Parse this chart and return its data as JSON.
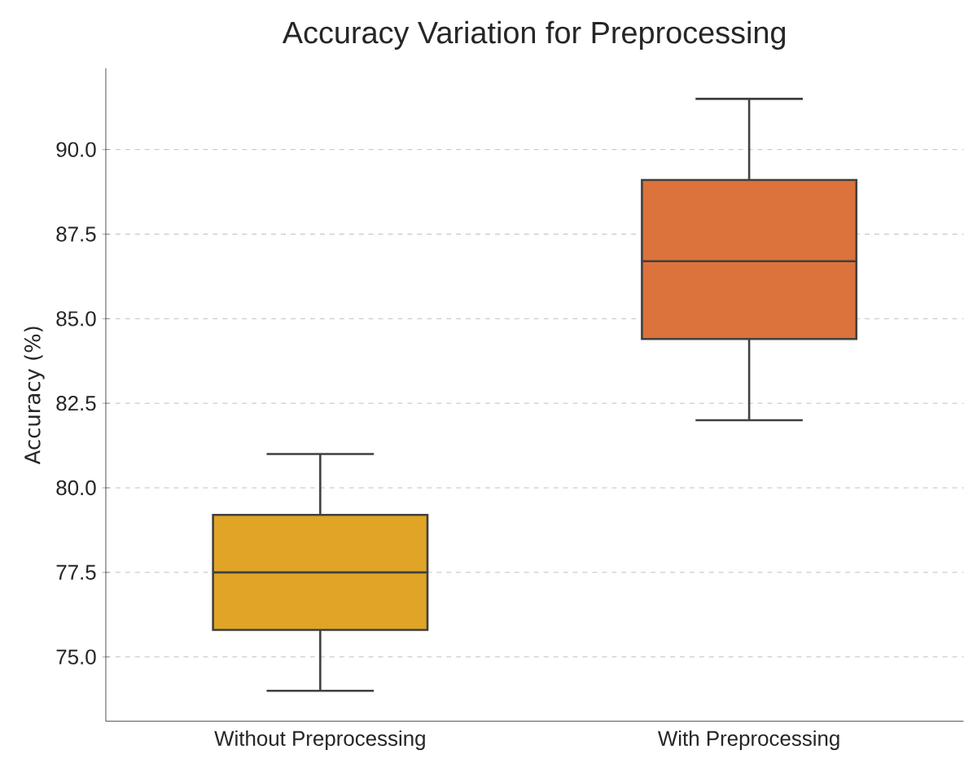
{
  "chart_data": {
    "type": "box",
    "title": "Accuracy Variation for Preprocessing",
    "ylabel": "Accuracy (%)",
    "categories": [
      "Without Preprocessing",
      "With Preprocessing"
    ],
    "colors": [
      "#e0a526",
      "#dc723c"
    ],
    "boxes": [
      {
        "low": 74.0,
        "q1": 75.8,
        "median": 77.5,
        "q3": 79.2,
        "high": 81.0
      },
      {
        "low": 82.0,
        "q1": 84.4,
        "median": 86.7,
        "q3": 89.1,
        "high": 91.5
      }
    ],
    "ylim": [
      73.1,
      92.4
    ],
    "yticks": [
      {
        "value": 75,
        "label": "75.0"
      },
      {
        "value": 77.5,
        "label": "77.5"
      },
      {
        "value": 80,
        "label": "80.0"
      },
      {
        "value": 82.5,
        "label": "82.5"
      },
      {
        "value": 85,
        "label": "85.0"
      },
      {
        "value": 87.5,
        "label": "87.5"
      },
      {
        "value": 90,
        "label": "90.0"
      }
    ],
    "grid": "y"
  }
}
